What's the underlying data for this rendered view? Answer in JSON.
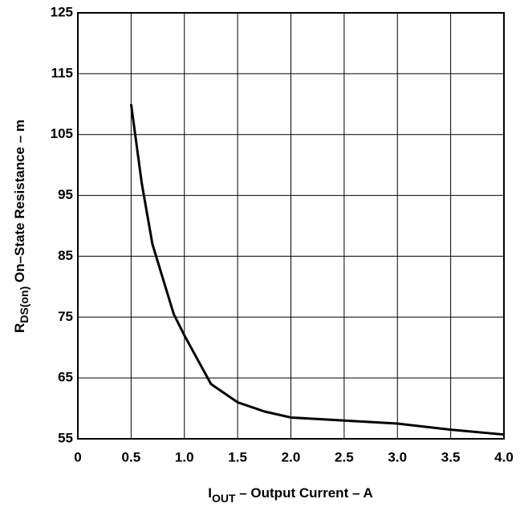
{
  "chart_data": {
    "type": "line",
    "x_label": {
      "main": "I",
      "sub": "OUT",
      "rest": " – Output Current – A"
    },
    "y_label": {
      "main": "R",
      "sub": "DS(on)",
      "rest": "  On–State Resistance – m"
    },
    "x": [
      0.5,
      0.6,
      0.7,
      0.9,
      1.0,
      1.25,
      1.5,
      1.75,
      2.0,
      2.5,
      3.0,
      3.5,
      4.0
    ],
    "series": [
      {
        "color": "#000000",
        "values": [
          110,
          97,
          87,
          75.5,
          72,
          64,
          61,
          59.5,
          58.5,
          58,
          57.5,
          56.5,
          55.7
        ]
      }
    ],
    "xlim": [
      0,
      4
    ],
    "xticks": [
      0,
      0.5,
      {
        "value": 1,
        "label": "1.0"
      },
      1.5,
      {
        "value": 2,
        "label": "2.0"
      },
      2.5,
      {
        "value": 3,
        "label": "3.0"
      },
      3.5,
      {
        "value": 4,
        "label": "4.0"
      }
    ],
    "ylim": [
      55,
      125
    ],
    "yticks": [
      55,
      65,
      75,
      85,
      95,
      105,
      115,
      125
    ],
    "grid": true
  }
}
